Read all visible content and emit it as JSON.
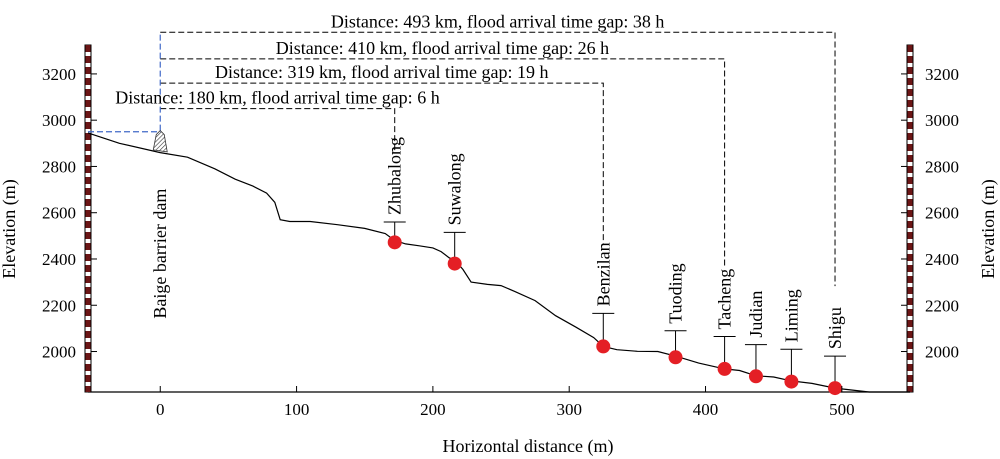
{
  "chart_data": {
    "type": "line",
    "xlabel": "Horizontal distance (m)",
    "ylabel_left": "Elevation (m)",
    "ylabel_right": "Elevation (m)",
    "xlim": [
      -53,
      550
    ],
    "ylim": [
      1825,
      3325
    ],
    "x_ticks": [
      0,
      100,
      200,
      300,
      400,
      500
    ],
    "y_ticks": [
      2000,
      2200,
      2400,
      2600,
      2800,
      3000,
      3200
    ],
    "profile": {
      "x": [
        -53,
        -30,
        0,
        20,
        40,
        55,
        68,
        78,
        84,
        88,
        95,
        110,
        130,
        150,
        165,
        172,
        180,
        190,
        200,
        206,
        212,
        216,
        222,
        228,
        240,
        250,
        260,
        275,
        290,
        305,
        318,
        325,
        335,
        350,
        365,
        378,
        395,
        414,
        425,
        437,
        450,
        463,
        478,
        495,
        520,
        550
      ],
      "y": [
        2945,
        2900,
        2860,
        2840,
        2790,
        2745,
        2715,
        2685,
        2645,
        2570,
        2562,
        2562,
        2548,
        2532,
        2510,
        2480,
        2465,
        2457,
        2448,
        2432,
        2405,
        2395,
        2355,
        2300,
        2290,
        2285,
        2260,
        2220,
        2155,
        2105,
        2060,
        2022,
        2008,
        2001,
        2000,
        1980,
        1950,
        1925,
        1918,
        1895,
        1890,
        1873,
        1862,
        1842,
        1825,
        1800
      ]
    },
    "dam": {
      "label": "Baige barrier dam",
      "x": 0,
      "base_elev": 2880,
      "crest_elev": 2955,
      "crest_line_elev": 2950,
      "crest_line_x_start": -53
    },
    "stations": [
      {
        "name": "Zhubalong",
        "x": 172,
        "elev": 2472,
        "stem_top_elev": 2560
      },
      {
        "name": "Suwalong",
        "x": 216,
        "elev": 2380,
        "stem_top_elev": 2515
      },
      {
        "name": "Benzilan",
        "x": 325,
        "elev": 2022,
        "stem_top_elev": 2165
      },
      {
        "name": "Tuoding",
        "x": 378,
        "elev": 1975,
        "stem_top_elev": 2090
      },
      {
        "name": "Tacheng",
        "x": 414,
        "elev": 1925,
        "stem_top_elev": 2065
      },
      {
        "name": "Judian",
        "x": 437,
        "elev": 1893,
        "stem_top_elev": 2030
      },
      {
        "name": "Liming",
        "x": 463,
        "elev": 1870,
        "stem_top_elev": 2010
      },
      {
        "name": "Shigu",
        "x": 495,
        "elev": 1842,
        "stem_top_elev": 1980
      }
    ],
    "annotations": [
      {
        "text": "Distance: 180 km, flood arrival time gap: 6 h",
        "station_x": 172,
        "line_elev": 3050
      },
      {
        "text": "Distance: 319 km, flood arrival time gap: 19 h",
        "station_x": 325,
        "line_elev": 3160
      },
      {
        "text": "Distance: 410 km, flood arrival time gap: 26 h",
        "station_x": 414,
        "line_elev": 3265
      },
      {
        "text": "Distance: 493 km, flood arrival time gap: 38 h",
        "station_x": 495,
        "line_elev": 3380
      }
    ],
    "colors": {
      "line": "#000000",
      "station": "#e41f25",
      "dam_link": "#4169c8",
      "frame_stripe": "#6b1515"
    },
    "grid": false
  }
}
